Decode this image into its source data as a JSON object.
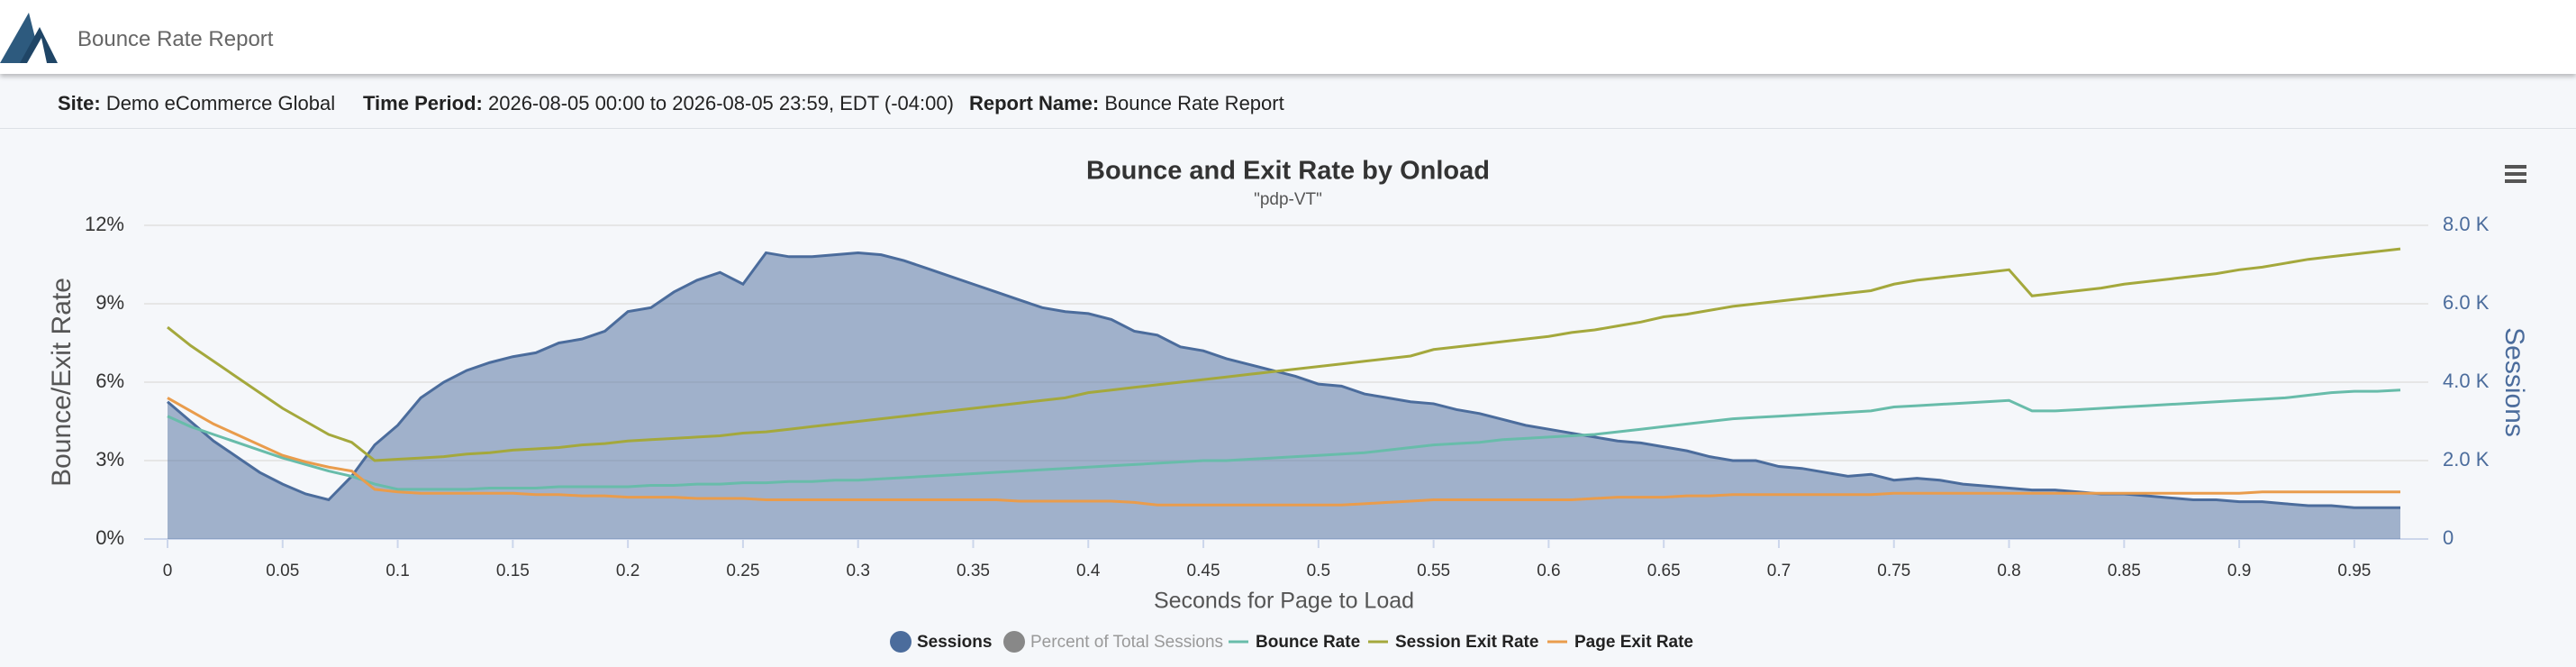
{
  "header": {
    "title": "Bounce Rate Report"
  },
  "info": [
    {
      "label": "Site:",
      "value": "Demo eCommerce Global"
    },
    {
      "label": "Time Period:",
      "value": "2026-08-05 00:00 to 2026-08-05 23:59, EDT (-04:00)"
    },
    {
      "label": "Report Name:",
      "value": "Bounce Rate Report"
    }
  ],
  "chart_data": {
    "type": "line",
    "title": "Bounce and Exit Rate by Onload",
    "subtitle": "\"pdp-VT\"",
    "x_label": "Seconds for Page to Load",
    "y_label": "Bounce/Exit Rate",
    "y2_label": "Sessions",
    "grid": true,
    "legend": "bottom",
    "x": [
      0,
      0.01,
      0.02,
      0.03,
      0.04,
      0.05,
      0.06,
      0.07,
      0.08,
      0.09,
      0.1,
      0.11,
      0.12,
      0.13,
      0.14,
      0.15,
      0.16,
      0.17,
      0.18,
      0.19,
      0.2,
      0.21,
      0.22,
      0.23,
      0.24,
      0.25,
      0.26,
      0.27,
      0.28,
      0.29,
      0.3,
      0.31,
      0.32,
      0.33,
      0.34,
      0.35,
      0.36,
      0.37,
      0.38,
      0.39,
      0.4,
      0.41,
      0.42,
      0.43,
      0.44,
      0.45,
      0.46,
      0.47,
      0.48,
      0.49,
      0.5,
      0.51,
      0.52,
      0.53,
      0.54,
      0.55,
      0.56,
      0.57,
      0.58,
      0.59,
      0.6,
      0.61,
      0.62,
      0.63,
      0.64,
      0.65,
      0.66,
      0.67,
      0.68,
      0.69,
      0.7,
      0.71,
      0.72,
      0.73,
      0.74,
      0.75,
      0.76,
      0.77,
      0.78,
      0.79,
      0.8,
      0.81,
      0.82,
      0.83,
      0.84,
      0.85,
      0.86,
      0.87,
      0.88,
      0.89,
      0.9,
      0.91,
      0.92,
      0.93,
      0.94,
      0.95,
      0.96,
      0.97
    ],
    "xlim": [
      0,
      0.97
    ],
    "xticks": [
      0,
      0.05,
      0.1,
      0.15,
      0.2,
      0.25,
      0.3,
      0.35,
      0.4,
      0.45,
      0.5,
      0.55,
      0.6,
      0.65,
      0.7,
      0.75,
      0.8,
      0.85,
      0.9,
      0.95
    ],
    "ylim": [
      0,
      12
    ],
    "yticks": [
      {
        "value": 0,
        "label": "0%"
      },
      {
        "value": 3,
        "label": "3%"
      },
      {
        "value": 6,
        "label": "6%"
      },
      {
        "value": 9,
        "label": "9%"
      },
      {
        "value": 12,
        "label": "12%"
      }
    ],
    "y2lim": [
      0,
      8
    ],
    "y2ticks": [
      0,
      {
        "value": 2,
        "label": "2.0 K"
      },
      {
        "value": 4,
        "label": "4.0 K"
      },
      {
        "value": 6,
        "label": "6.0 K"
      },
      {
        "value": 8,
        "label": "8.0 K"
      }
    ],
    "series": [
      {
        "name": "Sessions",
        "type": "area",
        "axis": "y2",
        "color": "#4b6c9c",
        "values": [
          3.5,
          3.0,
          2.5,
          2.1,
          1.7,
          1.4,
          1.15,
          1.0,
          1.6,
          2.4,
          2.9,
          3.6,
          4.0,
          4.3,
          4.5,
          4.65,
          4.75,
          5.0,
          5.1,
          5.3,
          5.8,
          5.9,
          6.3,
          6.6,
          6.8,
          6.5,
          7.3,
          7.2,
          7.2,
          7.25,
          7.3,
          7.25,
          7.1,
          6.9,
          6.7,
          6.5,
          6.3,
          6.1,
          5.9,
          5.8,
          5.75,
          5.6,
          5.3,
          5.2,
          4.9,
          4.8,
          4.6,
          4.45,
          4.3,
          4.15,
          3.95,
          3.9,
          3.7,
          3.6,
          3.5,
          3.45,
          3.3,
          3.2,
          3.05,
          2.9,
          2.8,
          2.7,
          2.6,
          2.5,
          2.45,
          2.35,
          2.25,
          2.1,
          2.0,
          2.0,
          1.85,
          1.8,
          1.7,
          1.6,
          1.65,
          1.5,
          1.55,
          1.5,
          1.4,
          1.35,
          1.3,
          1.25,
          1.25,
          1.2,
          1.15,
          1.15,
          1.1,
          1.05,
          1.0,
          1.0,
          0.95,
          0.95,
          0.9,
          0.85,
          0.85,
          0.8,
          0.8,
          0.8
        ]
      },
      {
        "name": "Percent of Total Sessions",
        "visible": false,
        "color": "#888888"
      },
      {
        "name": "Bounce Rate",
        "color": "#68bcaa",
        "values": [
          4.7,
          4.3,
          4.0,
          3.7,
          3.4,
          3.1,
          2.85,
          2.6,
          2.4,
          2.1,
          1.9,
          1.9,
          1.9,
          1.9,
          1.95,
          1.95,
          1.95,
          2.0,
          2.0,
          2.0,
          2.0,
          2.05,
          2.05,
          2.1,
          2.1,
          2.15,
          2.15,
          2.2,
          2.2,
          2.25,
          2.25,
          2.3,
          2.35,
          2.4,
          2.45,
          2.5,
          2.55,
          2.6,
          2.65,
          2.7,
          2.75,
          2.8,
          2.85,
          2.9,
          2.95,
          3.0,
          3.0,
          3.05,
          3.1,
          3.15,
          3.2,
          3.25,
          3.3,
          3.4,
          3.5,
          3.6,
          3.65,
          3.7,
          3.8,
          3.85,
          3.9,
          3.95,
          4.0,
          4.1,
          4.2,
          4.3,
          4.4,
          4.5,
          4.6,
          4.65,
          4.7,
          4.75,
          4.8,
          4.85,
          4.9,
          5.05,
          5.1,
          5.15,
          5.2,
          5.25,
          5.3,
          4.9,
          4.9,
          4.95,
          5.0,
          5.05,
          5.1,
          5.15,
          5.2,
          5.25,
          5.3,
          5.35,
          5.4,
          5.5,
          5.6,
          5.65,
          5.65,
          5.7
        ]
      },
      {
        "name": "Session Exit Rate",
        "color": "#a4a83c",
        "values": [
          8.1,
          7.4,
          6.8,
          6.2,
          5.6,
          5.0,
          4.5,
          4.0,
          3.7,
          3.0,
          3.05,
          3.1,
          3.15,
          3.25,
          3.3,
          3.4,
          3.45,
          3.5,
          3.6,
          3.65,
          3.75,
          3.8,
          3.85,
          3.9,
          3.95,
          4.05,
          4.1,
          4.2,
          4.3,
          4.4,
          4.5,
          4.6,
          4.7,
          4.8,
          4.9,
          5.0,
          5.1,
          5.2,
          5.3,
          5.4,
          5.6,
          5.7,
          5.8,
          5.9,
          6.0,
          6.1,
          6.2,
          6.3,
          6.4,
          6.5,
          6.6,
          6.7,
          6.8,
          6.9,
          7.0,
          7.25,
          7.35,
          7.45,
          7.55,
          7.65,
          7.75,
          7.9,
          8.0,
          8.15,
          8.3,
          8.5,
          8.6,
          8.75,
          8.9,
          9.0,
          9.1,
          9.2,
          9.3,
          9.4,
          9.5,
          9.75,
          9.9,
          10.0,
          10.1,
          10.2,
          10.3,
          9.3,
          9.4,
          9.5,
          9.6,
          9.75,
          9.85,
          9.95,
          10.05,
          10.15,
          10.3,
          10.4,
          10.55,
          10.7,
          10.8,
          10.9,
          11.0,
          11.1
        ]
      },
      {
        "name": "Page Exit Rate",
        "color": "#e99c4c",
        "values": [
          5.4,
          4.9,
          4.4,
          4.0,
          3.6,
          3.2,
          2.95,
          2.75,
          2.6,
          1.9,
          1.8,
          1.75,
          1.75,
          1.75,
          1.75,
          1.75,
          1.7,
          1.7,
          1.65,
          1.65,
          1.6,
          1.6,
          1.6,
          1.55,
          1.55,
          1.55,
          1.5,
          1.5,
          1.5,
          1.5,
          1.5,
          1.5,
          1.5,
          1.5,
          1.5,
          1.5,
          1.5,
          1.45,
          1.45,
          1.45,
          1.45,
          1.45,
          1.4,
          1.3,
          1.3,
          1.3,
          1.3,
          1.3,
          1.3,
          1.3,
          1.3,
          1.3,
          1.35,
          1.4,
          1.45,
          1.5,
          1.5,
          1.5,
          1.5,
          1.5,
          1.5,
          1.5,
          1.55,
          1.6,
          1.6,
          1.6,
          1.65,
          1.65,
          1.7,
          1.7,
          1.7,
          1.7,
          1.7,
          1.7,
          1.7,
          1.75,
          1.75,
          1.75,
          1.75,
          1.75,
          1.75,
          1.75,
          1.75,
          1.75,
          1.75,
          1.75,
          1.75,
          1.75,
          1.75,
          1.75,
          1.75,
          1.8,
          1.8,
          1.8,
          1.8,
          1.8,
          1.8,
          1.8
        ]
      }
    ]
  }
}
